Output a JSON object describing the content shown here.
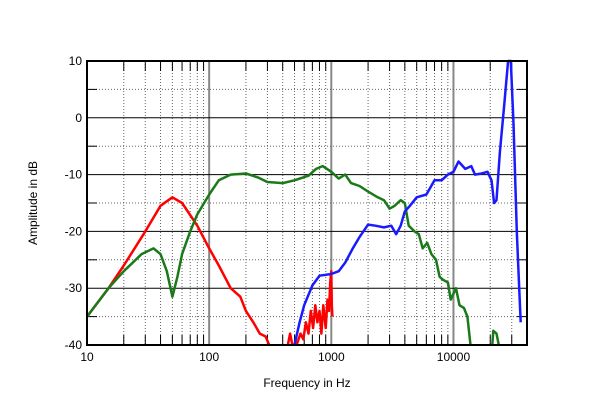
{
  "chart_data": {
    "type": "line",
    "title": "",
    "xlabel": "Frequency in Hz",
    "ylabel": "Amplitude in dB",
    "xscale": "log",
    "xlim": [
      10,
      40000
    ],
    "ylim": [
      -40,
      10
    ],
    "xticks": [
      {
        "v": 10,
        "label": "10"
      },
      {
        "v": 100,
        "label": "100"
      },
      {
        "v": 1000,
        "label": "1000"
      },
      {
        "v": 10000,
        "label": "10000"
      }
    ],
    "yticks": [
      {
        "v": 10,
        "label": "10"
      },
      {
        "v": 0,
        "label": "0"
      },
      {
        "v": -10,
        "label": "-10"
      },
      {
        "v": -20,
        "label": "-20"
      },
      {
        "v": -30,
        "label": "-30"
      },
      {
        "v": -40,
        "label": "-40"
      }
    ],
    "grid": true,
    "series": [
      {
        "name": "red",
        "color": "#ff0000",
        "segments": [
          [
            [
              10,
              -35
            ],
            [
              15,
              -30
            ],
            [
              20,
              -26
            ],
            [
              30,
              -20
            ],
            [
              40,
              -15.5
            ],
            [
              50,
              -14
            ],
            [
              60,
              -15
            ],
            [
              80,
              -19
            ],
            [
              100,
              -23
            ],
            [
              120,
              -26
            ],
            [
              150,
              -30
            ],
            [
              180,
              -31.5
            ],
            [
              200,
              -34
            ],
            [
              230,
              -36
            ],
            [
              260,
              -38
            ],
            [
              290,
              -38.5
            ],
            [
              310,
              -40
            ]
          ],
          [
            [
              440,
              -40
            ],
            [
              460,
              -38
            ],
            [
              480,
              -40
            ]
          ],
          [
            [
              520,
              -40
            ],
            [
              560,
              -38
            ],
            [
              590,
              -39
            ],
            [
              620,
              -36
            ],
            [
              650,
              -38
            ],
            [
              680,
              -34
            ],
            [
              710,
              -37
            ],
            [
              740,
              -33
            ],
            [
              770,
              -36
            ],
            [
              800,
              -34
            ],
            [
              830,
              -38
            ],
            [
              860,
              -33
            ],
            [
              900,
              -37
            ],
            [
              930,
              -32
            ],
            [
              960,
              -34
            ],
            [
              980,
              -29
            ],
            [
              1000,
              -27
            ],
            [
              1010,
              -33
            ],
            [
              1020,
              -35
            ]
          ]
        ]
      },
      {
        "name": "green",
        "color": "#1a7a1a",
        "segments": [
          [
            [
              10,
              -35
            ],
            [
              15,
              -30
            ],
            [
              20,
              -27
            ],
            [
              28,
              -24
            ],
            [
              35,
              -23
            ],
            [
              40,
              -24
            ],
            [
              45,
              -27
            ],
            [
              50,
              -31.5
            ],
            [
              55,
              -28
            ],
            [
              60,
              -24
            ],
            [
              70,
              -20
            ],
            [
              80,
              -17
            ],
            [
              100,
              -13.5
            ],
            [
              120,
              -11
            ],
            [
              150,
              -10
            ],
            [
              200,
              -9.8
            ],
            [
              250,
              -10.5
            ],
            [
              300,
              -11.3
            ],
            [
              400,
              -11.5
            ],
            [
              500,
              -11
            ],
            [
              650,
              -10.2
            ],
            [
              750,
              -9
            ],
            [
              850,
              -8.5
            ],
            [
              1000,
              -9.5
            ],
            [
              1150,
              -10.7
            ],
            [
              1300,
              -10
            ],
            [
              1450,
              -11.5
            ],
            [
              1700,
              -12
            ],
            [
              2000,
              -13
            ],
            [
              2400,
              -14
            ],
            [
              2700,
              -14.5
            ],
            [
              3000,
              -16
            ],
            [
              3300,
              -15.5
            ],
            [
              3700,
              -14.5
            ],
            [
              4000,
              -15
            ],
            [
              4300,
              -19
            ],
            [
              4800,
              -20
            ],
            [
              5200,
              -20.5
            ],
            [
              5600,
              -23
            ],
            [
              6100,
              -22
            ],
            [
              6600,
              -24
            ],
            [
              7200,
              -25
            ],
            [
              7700,
              -28
            ],
            [
              8200,
              -28.5
            ],
            [
              9000,
              -29
            ],
            [
              9500,
              -32
            ],
            [
              10500,
              -30
            ],
            [
              11200,
              -33
            ],
            [
              12200,
              -33.5
            ],
            [
              13000,
              -35
            ],
            [
              13800,
              -40
            ]
          ],
          [
            [
              20800,
              -40
            ],
            [
              21200,
              -37.5
            ],
            [
              22500,
              -38
            ],
            [
              23500,
              -40
            ]
          ]
        ]
      },
      {
        "name": "blue",
        "color": "#1a1aff",
        "segments": [
          [
            [
              500,
              -40
            ],
            [
              550,
              -36
            ],
            [
              600,
              -33
            ],
            [
              700,
              -29.5
            ],
            [
              800,
              -27.8
            ],
            [
              1000,
              -27.5
            ],
            [
              1150,
              -27
            ],
            [
              1300,
              -25.5
            ],
            [
              1500,
              -23
            ],
            [
              1700,
              -21
            ],
            [
              2000,
              -18.8
            ],
            [
              2300,
              -19
            ],
            [
              2700,
              -19.3
            ],
            [
              3100,
              -19
            ],
            [
              3400,
              -20.5
            ],
            [
              3700,
              -19
            ],
            [
              4000,
              -16.5
            ],
            [
              4400,
              -15.5
            ],
            [
              5000,
              -14
            ],
            [
              6000,
              -13.5
            ],
            [
              7000,
              -11
            ],
            [
              8000,
              -11
            ],
            [
              9000,
              -10
            ],
            [
              10000,
              -9.5
            ],
            [
              11000,
              -7.7
            ],
            [
              12500,
              -9
            ],
            [
              14000,
              -8.5
            ],
            [
              15000,
              -10
            ],
            [
              17000,
              -9.8
            ],
            [
              19000,
              -9.5
            ],
            [
              20500,
              -11
            ],
            [
              21500,
              -15
            ],
            [
              22500,
              -14.5
            ],
            [
              24000,
              -6
            ],
            [
              26000,
              2
            ],
            [
              28000,
              10
            ],
            [
              29500,
              10
            ],
            [
              31000,
              -1
            ],
            [
              33000,
              -20
            ],
            [
              34500,
              -30
            ],
            [
              35500,
              -36
            ]
          ]
        ]
      }
    ]
  }
}
